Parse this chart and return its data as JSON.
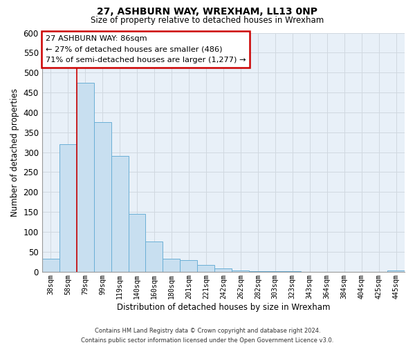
{
  "title": "27, ASHBURN WAY, WREXHAM, LL13 0NP",
  "subtitle": "Size of property relative to detached houses in Wrexham",
  "xlabel": "Distribution of detached houses by size in Wrexham",
  "ylabel": "Number of detached properties",
  "bar_values": [
    32,
    320,
    475,
    375,
    290,
    145,
    75,
    32,
    29,
    17,
    8,
    3,
    2,
    1,
    1,
    0,
    0,
    0,
    0,
    0,
    3
  ],
  "bar_labels": [
    "38sqm",
    "58sqm",
    "79sqm",
    "99sqm",
    "119sqm",
    "140sqm",
    "160sqm",
    "180sqm",
    "201sqm",
    "221sqm",
    "242sqm",
    "262sqm",
    "282sqm",
    "303sqm",
    "323sqm",
    "343sqm",
    "364sqm",
    "384sqm",
    "404sqm",
    "425sqm",
    "445sqm"
  ],
  "bar_color": "#c8dff0",
  "bar_edge_color": "#6aafd6",
  "annotation_box_edge": "#cc0000",
  "annotation_line_color": "#cc0000",
  "property_label": "27 ASHBURN WAY: 86sqm",
  "pct_smaller": 27,
  "n_smaller": 486,
  "pct_larger": 71,
  "n_larger": 1277,
  "red_line_x": 1.5,
  "ylim": [
    0,
    600
  ],
  "yticks": [
    0,
    50,
    100,
    150,
    200,
    250,
    300,
    350,
    400,
    450,
    500,
    550,
    600
  ],
  "bg_color": "#ffffff",
  "grid_color": "#d0d8e0",
  "footer_line1": "Contains HM Land Registry data © Crown copyright and database right 2024.",
  "footer_line2": "Contains public sector information licensed under the Open Government Licence v3.0."
}
